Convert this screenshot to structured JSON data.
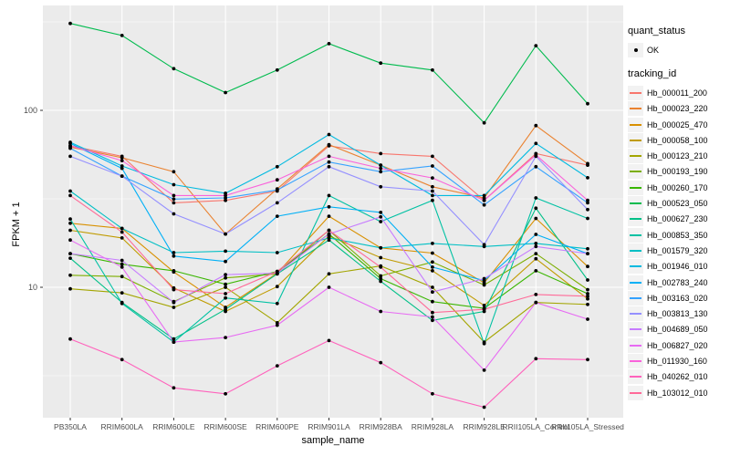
{
  "figure": {
    "y_axis_title": "FPKM + 1",
    "x_axis_title": "sample_name"
  },
  "legend": {
    "quant_status_title": "quant_status",
    "quant_status_items": [
      {
        "label": "OK",
        "symbol": "black-point"
      }
    ],
    "tracking_id_title": "tracking_id"
  },
  "chart_data": {
    "type": "line",
    "title": "",
    "xlabel": "sample_name",
    "ylabel": "FPKM + 1",
    "y_scale": "log10",
    "ylim": [
      1.8,
      390
    ],
    "y_major_ticks": [
      10,
      100
    ],
    "y_minor_gridlines": [
      3.162,
      31.62,
      316.2
    ],
    "grid": true,
    "legend_position": "right",
    "panel_background": "#EBEBEB",
    "gridline_color": "#FFFFFF",
    "tick_label_color": "#4D4D4D",
    "point_color": "#000000",
    "categories": [
      "PB350LA",
      "RRIM600LA",
      "RRIM600LE",
      "RRIM600SE",
      "RRIM600PE",
      "RRIM901LA",
      "RRIM928BA",
      "RRIM928LA",
      "RRIM928LE",
      "RRII105LA_Control",
      "RRII105LA_Stressed"
    ],
    "series": [
      {
        "name": "Hb_000011_200",
        "color": "#F8766D",
        "values": [
          63,
          55,
          30,
          31,
          35,
          63,
          57,
          55,
          31,
          57,
          49
        ]
      },
      {
        "name": "Hb_000023_220",
        "color": "#EA8331",
        "values": [
          62,
          54,
          45,
          20,
          36,
          64,
          49,
          37,
          32,
          82,
          50
        ]
      },
      {
        "name": "Hb_000025_470",
        "color": "#D89000",
        "values": [
          23,
          21.5,
          12.2,
          7.7,
          12,
          25.2,
          16.7,
          15.6,
          10.6,
          24.5,
          13.1
        ]
      },
      {
        "name": "Hb_000058_100",
        "color": "#C09B00",
        "values": [
          21,
          19,
          9.9,
          7.3,
          10.1,
          19.5,
          14.7,
          12.4,
          7.9,
          14.5,
          8.6
        ]
      },
      {
        "name": "Hb_000123_210",
        "color": "#A3A500",
        "values": [
          9.8,
          9.3,
          7.7,
          10,
          6.3,
          11.9,
          13.2,
          10,
          4.9,
          8.2,
          8.0
        ]
      },
      {
        "name": "Hb_000193_190",
        "color": "#7CAE00",
        "values": [
          11.7,
          11.5,
          8.3,
          11.3,
          11.9,
          21,
          11.6,
          13.9,
          10.3,
          15.5,
          9.7
        ]
      },
      {
        "name": "Hb_000260_170",
        "color": "#39B600",
        "values": [
          15.5,
          13.5,
          12.4,
          10.4,
          12.3,
          20,
          11.2,
          8.3,
          7.6,
          12.4,
          9.2
        ]
      },
      {
        "name": "Hb_000523_050",
        "color": "#00BB4E",
        "values": [
          310,
          265,
          172,
          126,
          169,
          238,
          185,
          169,
          85,
          232,
          109
        ]
      },
      {
        "name": "Hb_000627_230",
        "color": "#00C087",
        "values": [
          14.6,
          8.2,
          5.1,
          7.5,
          11.9,
          18.5,
          10.8,
          6.5,
          7.3,
          28,
          11
        ]
      },
      {
        "name": "Hb_000853_350",
        "color": "#00C1A3",
        "values": [
          24.3,
          8.1,
          4.9,
          8.7,
          8.1,
          33,
          23.5,
          31,
          4.8,
          32,
          24.5
        ]
      },
      {
        "name": "Hb_001579_320",
        "color": "#00BFC4",
        "values": [
          35,
          21.5,
          15.7,
          16,
          15.7,
          19,
          16.7,
          17.7,
          17,
          17.7,
          16.5
        ]
      },
      {
        "name": "Hb_001946_010",
        "color": "#00BAE0",
        "values": [
          66,
          48.5,
          38,
          34,
          48,
          73,
          49,
          33,
          33,
          65,
          41.6
        ]
      },
      {
        "name": "Hb_002783_240",
        "color": "#00B0F6",
        "values": [
          65,
          47,
          15,
          14,
          25.2,
          28.5,
          26.5,
          13,
          10.9,
          19.9,
          15.5
        ]
      },
      {
        "name": "Hb_003163_020",
        "color": "#35A2FF",
        "values": [
          61,
          42.5,
          31.5,
          32,
          35.5,
          51,
          45,
          48.5,
          29.2,
          48,
          30
        ]
      },
      {
        "name": "Hb_003813_130",
        "color": "#9590FF",
        "values": [
          55,
          42.5,
          26,
          20,
          30,
          48,
          37,
          35,
          17.4,
          55,
          27.5
        ]
      },
      {
        "name": "Hb_004689_050",
        "color": "#C77CFF",
        "values": [
          15.5,
          14.2,
          8.2,
          11.8,
          12,
          20,
          25,
          9.4,
          11.2,
          17,
          15.5
        ]
      },
      {
        "name": "Hb_006827_020",
        "color": "#E76BF3",
        "values": [
          18.5,
          13,
          4.9,
          5.2,
          6.1,
          10,
          7.3,
          6.8,
          3.4,
          8.2,
          6.6
        ]
      },
      {
        "name": "Hb_011930_160",
        "color": "#FA62DB",
        "values": [
          63,
          52,
          33,
          33,
          40.5,
          55,
          47,
          41.5,
          31,
          56,
          31
        ]
      },
      {
        "name": "Hb_040262_010",
        "color": "#FF62BC",
        "values": [
          5.1,
          3.9,
          2.7,
          2.5,
          3.6,
          5.0,
          3.75,
          2.5,
          2.1,
          3.95,
          3.9
        ]
      },
      {
        "name": "Hb_103012_010",
        "color": "#FF6A98",
        "values": [
          33,
          20.5,
          9.7,
          9.2,
          12.3,
          21,
          13,
          7.2,
          7.5,
          9.1,
          8.9
        ]
      }
    ]
  }
}
